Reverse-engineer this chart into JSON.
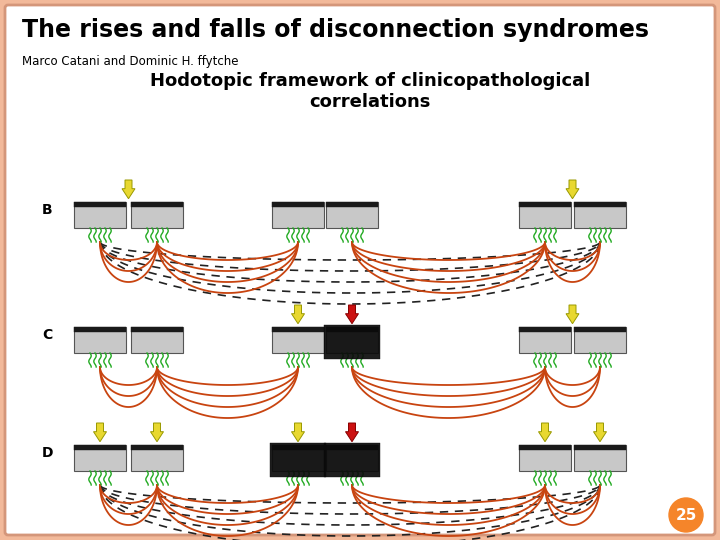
{
  "bg_color": "#f2b99a",
  "slide_bg": "#ffffff",
  "title": "The rises and falls of disconnection syndromes",
  "author": "Marco Catani and Dominic H. ffytche",
  "subtitle": "Hodotopic framework of clinicopathological\ncorrelations",
  "page_num": "25",
  "page_circle_color": "#f5852a",
  "node_fill": "#c8c8c8",
  "node_edge": "#555555",
  "node_top_bar": "#1a1a1a",
  "lesion_color": "#0a0a0a",
  "arrow_yellow_face": "#e8d830",
  "arrow_yellow_edge": "#999900",
  "arrow_red_face": "#cc1111",
  "arrow_red_edge": "#880000",
  "fiber_brown": "#c84410",
  "fiber_dashed_color": "#222222",
  "fiber_green": "#22aa22",
  "border_color": "#d4967a"
}
